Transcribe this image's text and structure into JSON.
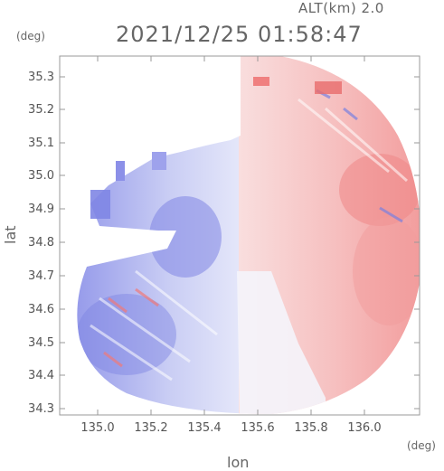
{
  "header": {
    "altitude": "ALT(km) 2.0",
    "timestamp": "2021/12/25 01:58:47"
  },
  "axes": {
    "y_unit": "(deg)",
    "x_unit": "(deg)",
    "y_label": "lat",
    "x_label": "lon",
    "y_ticks": [
      "35.3",
      "35.2",
      "35.1",
      "35.0",
      "34.9",
      "34.8",
      "34.7",
      "34.6",
      "34.5",
      "34.4",
      "34.3"
    ],
    "x_ticks": [
      "135.0",
      "135.2",
      "135.4",
      "135.6",
      "135.8",
      "136.0"
    ]
  },
  "colors": {
    "approaching": "#7b80e6",
    "receding": "#f08a8a",
    "frame": "#999999"
  }
}
